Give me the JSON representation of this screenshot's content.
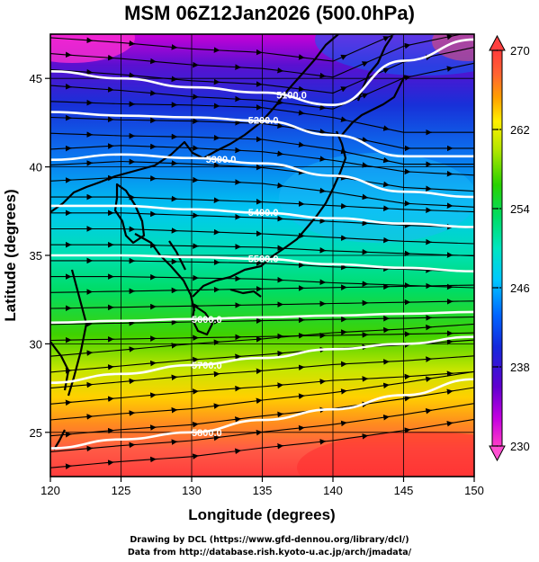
{
  "title": "MSM 06Z12Jan2026 (500.0hPa)",
  "credits": {
    "line1": "Drawing by DCL (https://www.gfd-dennou.org/library/dcl/)",
    "line2": "Data from http://database.rish.kyoto-u.ac.jp/arch/jmadata/"
  },
  "chart_data": {
    "type": "heatmap",
    "title": "MSM 06Z12Jan2026 (500.0hPa)",
    "xlabel": "Longitude (degrees)",
    "ylabel": "Latitude  (degrees)",
    "xlim": [
      120,
      150
    ],
    "ylim": [
      22.5,
      47.5
    ],
    "x_ticks": [
      "120",
      "125",
      "130",
      "135",
      "140",
      "145",
      "150"
    ],
    "y_ticks": [
      "25",
      "30",
      "35",
      "40",
      "45"
    ],
    "grid": true,
    "colorbar": {
      "range": [
        230,
        270
      ],
      "tick_labels": [
        "230",
        "238",
        "246",
        "254",
        "262",
        "270"
      ],
      "position": "right",
      "colors": [
        "#ff3cc8",
        "#c400e0",
        "#5000c8",
        "#1428dc",
        "#0064ff",
        "#00c8ff",
        "#00e6c0",
        "#00dc64",
        "#28d200",
        "#b4e600",
        "#fff000",
        "#ffa000",
        "#ff6432",
        "#ff4650",
        "#ff3c3c"
      ]
    },
    "contours": [
      {
        "label": "5100.0",
        "lon": [
          120,
          125,
          130,
          135,
          140,
          145,
          150
        ],
        "lat": [
          45.4,
          45.0,
          44.5,
          44.2,
          43.5,
          46.0,
          47.2
        ]
      },
      {
        "label": "5200.0",
        "lon": [
          120,
          125,
          130,
          135,
          140,
          145,
          150
        ],
        "lat": [
          43.1,
          42.9,
          42.8,
          42.6,
          41.8,
          40.6,
          40.6
        ]
      },
      {
        "label": "5300.0",
        "lon": [
          120,
          125,
          130,
          135,
          140,
          145,
          150
        ],
        "lat": [
          40.4,
          40.7,
          40.5,
          40.2,
          39.5,
          38.6,
          38.3
        ]
      },
      {
        "label": "5400.0",
        "lon": [
          120,
          125,
          130,
          135,
          140,
          145,
          150
        ],
        "lat": [
          37.8,
          37.8,
          37.6,
          37.4,
          37.1,
          36.8,
          36.6
        ]
      },
      {
        "label": "5500.0",
        "lon": [
          120,
          125,
          130,
          135,
          140,
          145,
          150
        ],
        "lat": [
          35.0,
          35.0,
          34.9,
          34.8,
          34.5,
          34.3,
          34.1
        ]
      },
      {
        "label": "5600.0",
        "lon": [
          120,
          125,
          130,
          135,
          140,
          145,
          150
        ],
        "lat": [
          31.2,
          31.3,
          31.4,
          31.5,
          31.6,
          31.7,
          31.8
        ]
      },
      {
        "label": "5700.0",
        "lon": [
          120,
          125,
          130,
          135,
          140,
          145,
          150
        ],
        "lat": [
          27.8,
          28.3,
          28.8,
          29.2,
          29.7,
          30.0,
          30.4
        ]
      },
      {
        "label": "5800.0",
        "lon": [
          120,
          125,
          130,
          135,
          140,
          145,
          150
        ],
        "lat": [
          24.1,
          24.6,
          25.0,
          25.7,
          26.3,
          27.1,
          28.0
        ]
      }
    ]
  }
}
